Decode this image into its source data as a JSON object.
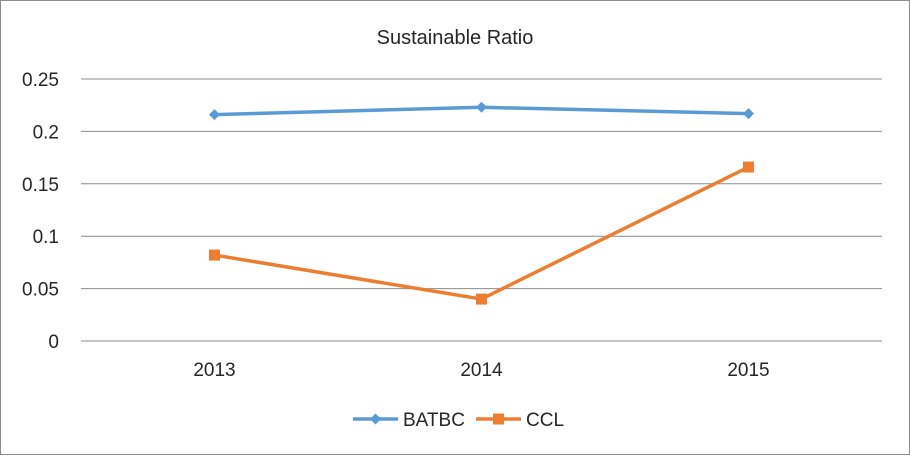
{
  "chart_data": {
    "type": "line",
    "title": "Sustainable Ratio",
    "xlabel": "",
    "ylabel": "",
    "categories": [
      "2013",
      "2014",
      "2015"
    ],
    "ylim": [
      0,
      0.25
    ],
    "yticks": [
      "0",
      "0.05",
      "0.1",
      "0.15",
      "0.2",
      "0.25"
    ],
    "grid": true,
    "legend_position": "bottom",
    "series": [
      {
        "name": "BATBC",
        "values": [
          0.216,
          0.223,
          0.217
        ],
        "color": "#5b9bd5",
        "marker": "diamond"
      },
      {
        "name": "CCL",
        "values": [
          0.082,
          0.04,
          0.166
        ],
        "color": "#ed7d31",
        "marker": "square"
      }
    ]
  }
}
